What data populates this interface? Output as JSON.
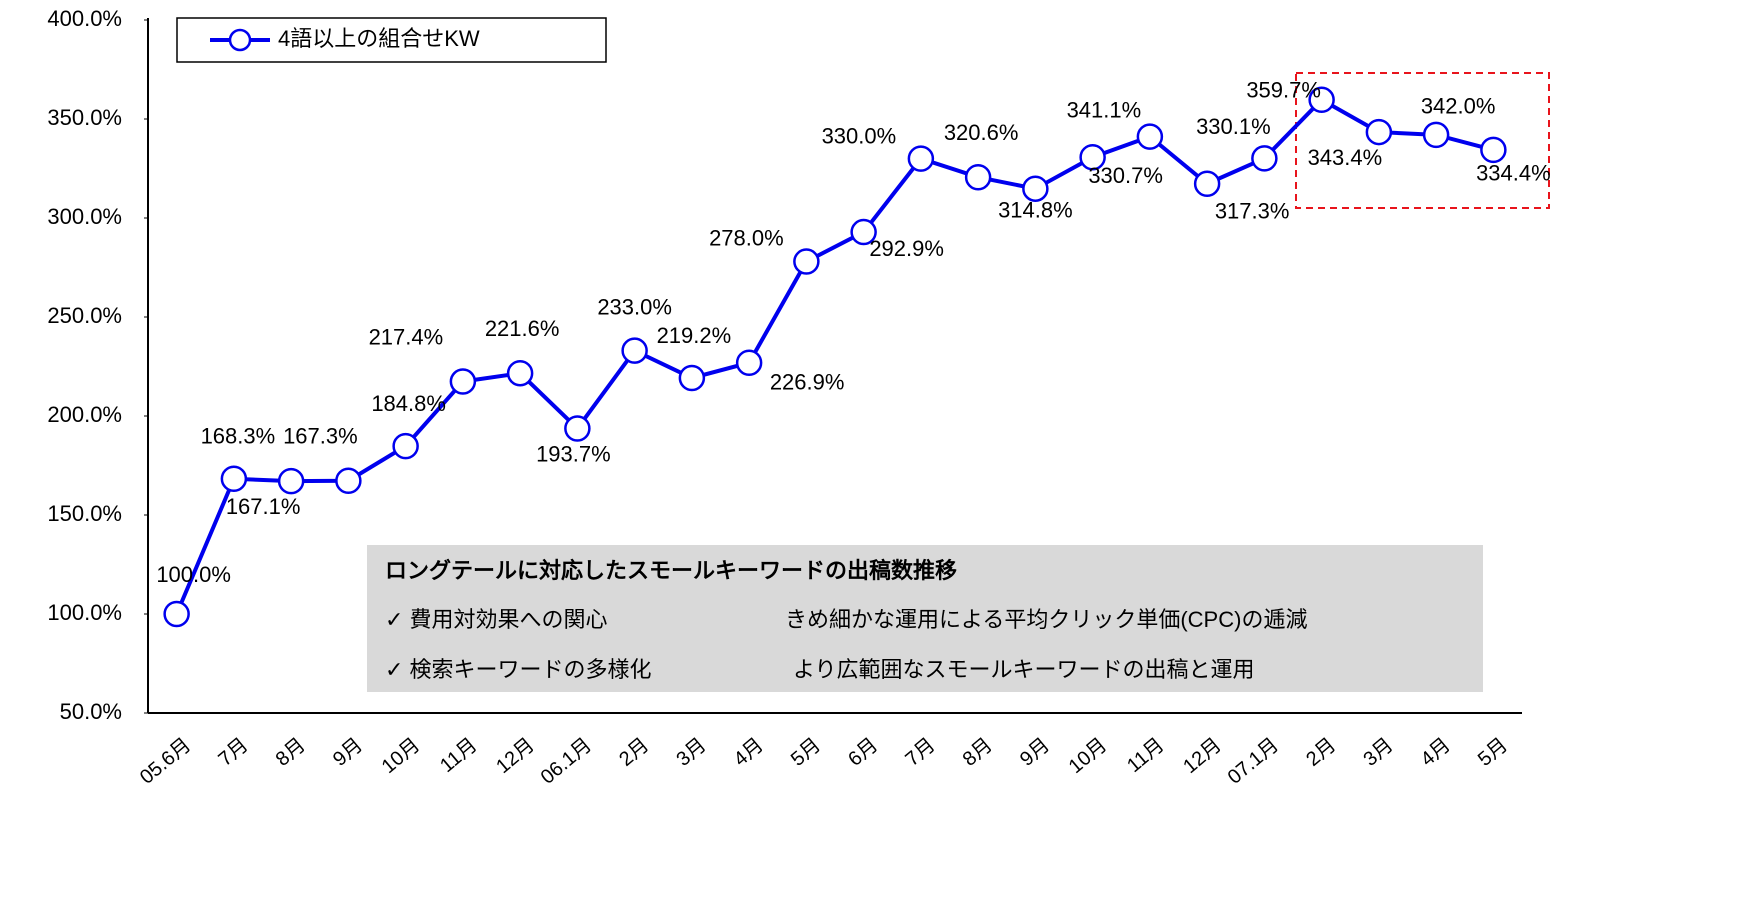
{
  "chart_data": {
    "type": "line",
    "categories": [
      "05.6月",
      "7月",
      "8月",
      "9月",
      "10月",
      "11月",
      "12月",
      "06.1月",
      "2月",
      "3月",
      "4月",
      "5月",
      "6月",
      "7月",
      "8月",
      "9月",
      "10月",
      "11月",
      "12月",
      "07.1月",
      "2月",
      "3月",
      "4月",
      "5月"
    ],
    "series": [
      {
        "name": "4語以上の組合せKW",
        "color": "#0000ee",
        "values": [
          100.0,
          168.3,
          167.1,
          167.3,
          184.8,
          217.4,
          221.6,
          193.7,
          233.0,
          219.2,
          226.9,
          278.0,
          292.9,
          330.0,
          320.6,
          314.8,
          330.7,
          341.1,
          317.3,
          330.1,
          359.7,
          343.4,
          342.0,
          334.4
        ],
        "value_labels": [
          "100.0%",
          "168.3%",
          "167.1%",
          "167.3%",
          "184.8%",
          "217.4%",
          "221.6%",
          "193.7%",
          "233.0%",
          "219.2%",
          "226.9%",
          "278.0%",
          "292.9%",
          "330.0%",
          "320.6%",
          "314.8%",
          "330.7%",
          "341.1%",
          "317.3%",
          "330.1%",
          "359.7%",
          "343.4%",
          "342.0%",
          "334.4%"
        ]
      }
    ],
    "ylim": [
      50,
      400
    ],
    "yticks": [
      {
        "value": 50,
        "label": "50.0%"
      },
      {
        "value": 100,
        "label": "100.0%"
      },
      {
        "value": 150,
        "label": "150.0%"
      },
      {
        "value": 200,
        "label": "200.0%"
      },
      {
        "value": 250,
        "label": "250.0%"
      },
      {
        "value": 300,
        "label": "300.0%"
      },
      {
        "value": 350,
        "label": "350.0%"
      },
      {
        "value": 400,
        "label": "400.0%"
      }
    ],
    "grid": false,
    "legend": "top-left",
    "annotation": {
      "title": "ロングテールに対応したスモールキーワードの出稿数推移",
      "items": [
        {
          "left": "✓  費用対効果への関心",
          "right": "きめ細かな運用による平均クリック単価(CPC)の逓減"
        },
        {
          "left": "✓  検索キーワードの多様化",
          "right": "より広範囲なスモールキーワードの出稿と運用"
        }
      ]
    }
  }
}
